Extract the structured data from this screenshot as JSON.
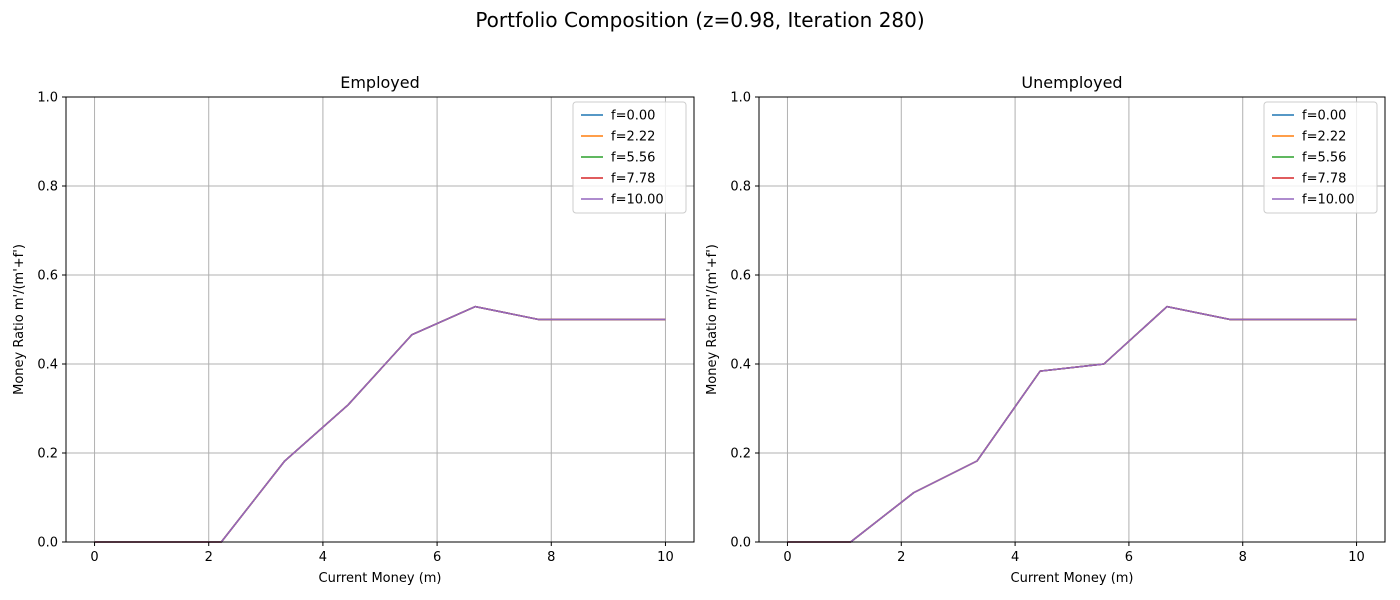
{
  "figure": {
    "title": "Portfolio Composition (z=0.98, Iteration 280)"
  },
  "chart_data": [
    {
      "type": "line",
      "title": "Employed",
      "xlabel": "Current Money (m)",
      "ylabel": "Money Ratio m'/(m'+f')",
      "xlim": [
        -0.5,
        10.5
      ],
      "ylim": [
        0,
        1
      ],
      "xticks": [
        0,
        2,
        4,
        6,
        8,
        10
      ],
      "yticks": [
        0.0,
        0.2,
        0.4,
        0.6,
        0.8,
        1.0
      ],
      "xtick_labels": [
        "0",
        "2",
        "4",
        "6",
        "8",
        "10"
      ],
      "ytick_labels": [
        "0.0",
        "0.2",
        "0.4",
        "0.6",
        "0.8",
        "1.0"
      ],
      "grid": true,
      "legend": "upper right",
      "x": [
        0,
        1.11,
        2.22,
        3.33,
        4.44,
        5.56,
        6.67,
        7.78,
        8.89,
        10
      ],
      "series": [
        {
          "name": "f=0.00",
          "color": "#1f77b4",
          "values": [
            0,
            0,
            0,
            0.182,
            0.308,
            0.466,
            0.529,
            0.5,
            0.5,
            0.5
          ]
        },
        {
          "name": "f=2.22",
          "color": "#ff7f0e",
          "values": [
            0,
            0,
            0,
            0.182,
            0.308,
            0.466,
            0.529,
            0.5,
            0.5,
            0.5
          ]
        },
        {
          "name": "f=5.56",
          "color": "#2ca02c",
          "values": [
            0,
            0,
            0,
            0.182,
            0.308,
            0.466,
            0.529,
            0.5,
            0.5,
            0.5
          ]
        },
        {
          "name": "f=7.78",
          "color": "#d62728",
          "values": [
            0,
            0,
            0,
            0.182,
            0.308,
            0.466,
            0.529,
            0.5,
            0.5,
            0.5
          ]
        },
        {
          "name": "f=10.00",
          "color": "#9467bd",
          "values": [
            0,
            0,
            0,
            0.182,
            0.308,
            0.466,
            0.529,
            0.5,
            0.5,
            0.5
          ]
        }
      ]
    },
    {
      "type": "line",
      "title": "Unemployed",
      "xlabel": "Current Money (m)",
      "ylabel": "Money Ratio m'/(m'+f')",
      "xlim": [
        -0.5,
        10.5
      ],
      "ylim": [
        0,
        1
      ],
      "xticks": [
        0,
        2,
        4,
        6,
        8,
        10
      ],
      "yticks": [
        0.0,
        0.2,
        0.4,
        0.6,
        0.8,
        1.0
      ],
      "xtick_labels": [
        "0",
        "2",
        "4",
        "6",
        "8",
        "10"
      ],
      "ytick_labels": [
        "0.0",
        "0.2",
        "0.4",
        "0.6",
        "0.8",
        "1.0"
      ],
      "grid": true,
      "legend": "upper right",
      "x": [
        0,
        1.11,
        2.22,
        3.33,
        4.44,
        5.56,
        6.67,
        7.78,
        8.89,
        10
      ],
      "series": [
        {
          "name": "f=0.00",
          "color": "#1f77b4",
          "values": [
            0,
            0,
            0.111,
            0.182,
            0.384,
            0.4,
            0.529,
            0.5,
            0.5,
            0.5
          ]
        },
        {
          "name": "f=2.22",
          "color": "#ff7f0e",
          "values": [
            0,
            0,
            0.111,
            0.182,
            0.384,
            0.4,
            0.529,
            0.5,
            0.5,
            0.5
          ]
        },
        {
          "name": "f=5.56",
          "color": "#2ca02c",
          "values": [
            0,
            0,
            0.111,
            0.182,
            0.384,
            0.4,
            0.529,
            0.5,
            0.5,
            0.5
          ]
        },
        {
          "name": "f=7.78",
          "color": "#d62728",
          "values": [
            0,
            0,
            0.111,
            0.182,
            0.384,
            0.4,
            0.529,
            0.5,
            0.5,
            0.5
          ]
        },
        {
          "name": "f=10.00",
          "color": "#9467bd",
          "values": [
            0,
            0,
            0.111,
            0.182,
            0.384,
            0.4,
            0.529,
            0.5,
            0.5,
            0.5
          ]
        }
      ]
    }
  ]
}
